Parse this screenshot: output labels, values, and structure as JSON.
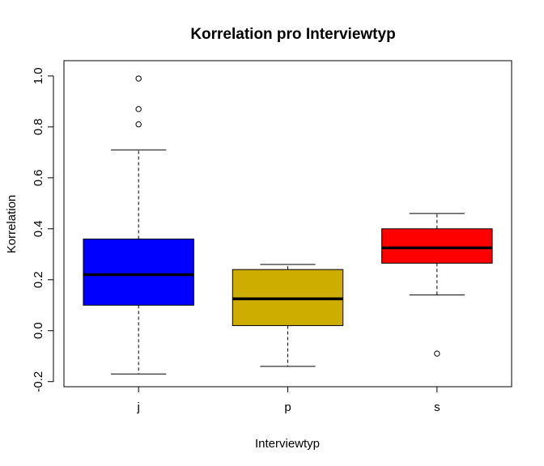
{
  "chart_data": {
    "type": "boxplot",
    "title": "Korrelation pro Interviewtyp",
    "xlabel": "Interviewtyp",
    "ylabel": "Korrelation",
    "ylim": [
      -0.22,
      1.06
    ],
    "yticks": [
      -0.2,
      0.0,
      0.2,
      0.4,
      0.6,
      0.8,
      1.0
    ],
    "ytick_labels": [
      "-0.2",
      "0.0",
      "0.2",
      "0.4",
      "0.6",
      "0.8",
      "1.0"
    ],
    "categories": [
      "j",
      "p",
      "s"
    ],
    "grid": false,
    "boxes": [
      {
        "category": "j",
        "color": "#0000FF",
        "whisker_low": -0.17,
        "q1": 0.1,
        "median": 0.22,
        "q3": 0.36,
        "whisker_high": 0.71,
        "outliers": [
          0.81,
          0.87,
          0.99
        ]
      },
      {
        "category": "p",
        "color": "#CDAD00",
        "whisker_low": -0.14,
        "q1": 0.02,
        "median": 0.125,
        "q3": 0.24,
        "whisker_high": 0.26,
        "outliers": []
      },
      {
        "category": "s",
        "color": "#FF0000",
        "whisker_low": 0.14,
        "q1": 0.265,
        "median": 0.325,
        "q3": 0.4,
        "whisker_high": 0.46,
        "outliers": [
          -0.09
        ]
      }
    ]
  }
}
